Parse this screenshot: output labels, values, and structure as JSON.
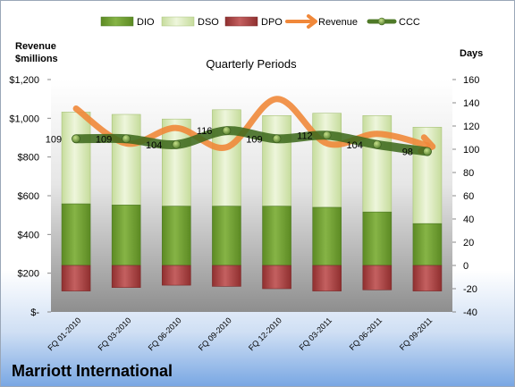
{
  "chart_data": {
    "type": "bar",
    "title": "Quarterly Periods",
    "company": "Marriott International",
    "left_axis_label_line1": "Revenue",
    "left_axis_label_line2": "$millions",
    "right_axis_label": "Days",
    "categories": [
      "FQ 01-2010",
      "FQ 03-2010",
      "FQ 06-2010",
      "FQ 09-2010",
      "FQ 12-2010",
      "FQ 03-2011",
      "FQ 06-2011",
      "FQ 09-2011"
    ],
    "left_ticks": [
      "$-",
      "$200",
      "$400",
      "$600",
      "$800",
      "$1,000",
      "$1,200"
    ],
    "left_ylim": [
      0,
      1200
    ],
    "right_ylim": [
      -40,
      160
    ],
    "right_ticks": [
      -40,
      -20,
      0,
      20,
      40,
      60,
      80,
      100,
      120,
      140,
      160
    ],
    "series": [
      {
        "name": "DIO",
        "type": "bar-stacked",
        "axis": "right",
        "color": "#76a33a",
        "values": [
          53,
          52,
          51,
          51,
          51,
          50,
          46,
          36
        ]
      },
      {
        "name": "DSO",
        "type": "bar-stacked",
        "axis": "right",
        "color": "#dcebbf",
        "values": [
          79,
          78,
          75,
          83,
          78,
          81,
          83,
          83
        ]
      },
      {
        "name": "DPO",
        "type": "bar-negative",
        "axis": "right",
        "color": "#b04a4a",
        "values": [
          -22,
          -19,
          -17,
          -18,
          -20,
          -22,
          -21,
          -22
        ]
      },
      {
        "name": "Revenue",
        "type": "line",
        "axis": "left",
        "color": "#f0883a",
        "values": [
          1050,
          870,
          950,
          850,
          1100,
          870,
          920,
          860
        ]
      },
      {
        "name": "CCC",
        "type": "line",
        "axis": "right",
        "color": "#4f7a28",
        "values": [
          109,
          109,
          104,
          116,
          109,
          112,
          104,
          98
        ],
        "labels": [
          "109",
          "109",
          "104",
          "116",
          "109",
          "112",
          "104",
          "98"
        ]
      }
    ],
    "legend": [
      "DIO",
      "DSO",
      "DPO",
      "Revenue",
      "CCC"
    ],
    "legend_position": "top",
    "grid": false
  }
}
